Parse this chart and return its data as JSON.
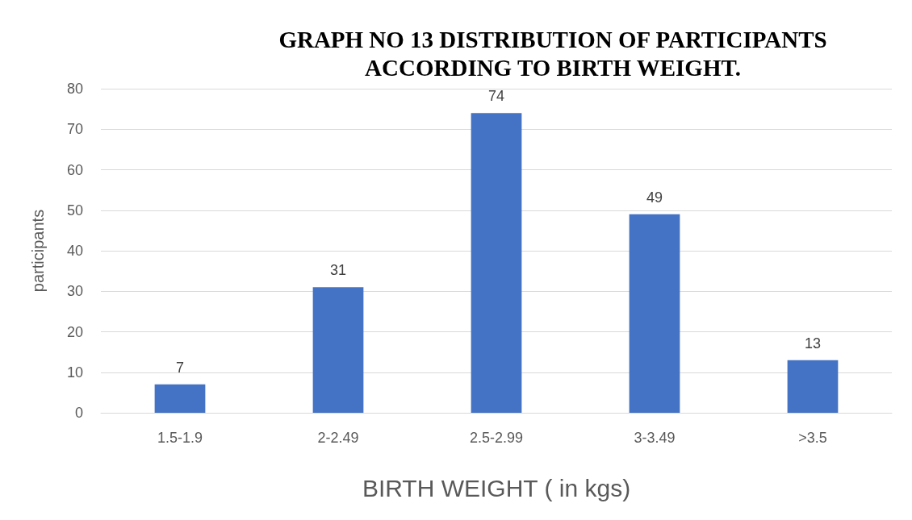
{
  "chart_data": {
    "type": "bar",
    "title": "GRAPH NO 13 DISTRIBUTION OF PARTICIPANTS\nACCORDING TO BIRTH WEIGHT.",
    "xlabel": "BIRTH WEIGHT ( in kgs)",
    "ylabel": "participants",
    "categories": [
      "1.5-1.9",
      "2-2.49",
      "2.5-2.99",
      "3-3.49",
      ">3.5"
    ],
    "values": [
      7,
      31,
      74,
      49,
      13
    ],
    "color": "#4472c4",
    "ylim": [
      0,
      80
    ],
    "yticks": [
      0,
      10,
      20,
      30,
      40,
      50,
      60,
      70,
      80
    ],
    "grid": "y",
    "data_labels": true
  }
}
